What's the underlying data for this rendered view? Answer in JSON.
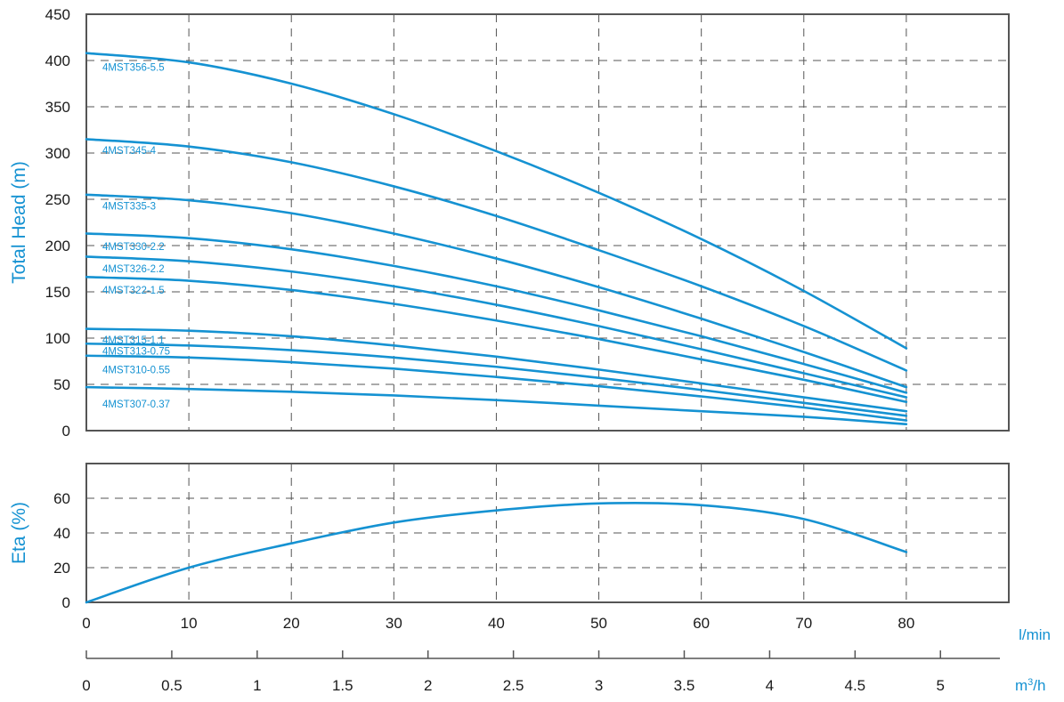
{
  "colors": {
    "curve": "#1592d2",
    "frame": "#555555",
    "text": "#1a1a1a"
  },
  "chart_data": [
    {
      "type": "line",
      "ylabel": "Total Head (m)",
      "ylim": [
        0,
        450
      ],
      "xlim": [
        0,
        90
      ],
      "y_ticks": [
        {
          "value": 0,
          "label": "0"
        },
        {
          "value": 50,
          "label": "50"
        },
        {
          "value": 100,
          "label": "100"
        },
        {
          "value": 150,
          "label": "150"
        },
        {
          "value": 200,
          "label": "200"
        },
        {
          "value": 250,
          "label": "250"
        },
        {
          "value": 300,
          "label": "300"
        },
        {
          "value": 350,
          "label": "350"
        },
        {
          "value": 400,
          "label": "400"
        },
        {
          "value": 450,
          "label": "450"
        }
      ],
      "grid": true,
      "x": [
        0,
        10,
        20,
        30,
        40,
        50,
        60,
        70,
        80
      ],
      "series": [
        {
          "name": "4MST356-5.5",
          "label_at": [
            0,
            393
          ],
          "values": [
            408,
            398,
            375,
            342,
            302,
            257,
            207,
            151,
            89
          ]
        },
        {
          "name": "4MST345-4",
          "label_at": [
            0,
            303
          ],
          "values": [
            315,
            307,
            290,
            264,
            232,
            195,
            156,
            113,
            65
          ]
        },
        {
          "name": "4MST335-3",
          "label_at": [
            0,
            243
          ],
          "values": [
            255,
            249,
            235,
            213,
            186,
            155,
            121,
            85,
            47
          ]
        },
        {
          "name": "4MST330-2.2",
          "label_at": [
            0,
            199
          ],
          "values": [
            213,
            208,
            196,
            178,
            156,
            130,
            102,
            72,
            41
          ]
        },
        {
          "name": "4MST326-2.2",
          "label_at": [
            0,
            175
          ],
          "values": [
            188,
            183,
            172,
            156,
            136,
            113,
            88,
            62,
            36
          ]
        },
        {
          "name": "4MST322-1.5",
          "label_at": [
            0,
            152
          ],
          "values": [
            166,
            162,
            152,
            137,
            119,
            99,
            77,
            55,
            31
          ]
        },
        {
          "name": "4MST315-1.1",
          "label_at": [
            0,
            98
          ],
          "values": [
            110,
            108,
            102,
            92,
            80,
            66,
            51,
            36,
            21
          ]
        },
        {
          "name": "4MST313-0.75",
          "label_at": [
            0,
            86
          ],
          "values": [
            94,
            92,
            87,
            79,
            69,
            57,
            44,
            30,
            16
          ]
        },
        {
          "name": "4MST310-0.55",
          "label_at": [
            0,
            66
          ],
          "values": [
            81,
            79,
            74,
            67,
            58,
            48,
            37,
            25,
            11
          ]
        },
        {
          "name": "4MST307-0.37",
          "label_at": [
            0,
            29
          ],
          "values": [
            47,
            45,
            42,
            38,
            33,
            27,
            21,
            15,
            7
          ]
        }
      ]
    },
    {
      "type": "line",
      "ylabel": "Eta (%)",
      "ylim": [
        0,
        80
      ],
      "xlim": [
        0,
        90
      ],
      "y_ticks": [
        {
          "value": 0,
          "label": "0"
        },
        {
          "value": 20,
          "label": "20"
        },
        {
          "value": 40,
          "label": "40"
        },
        {
          "value": 60,
          "label": "60"
        }
      ],
      "grid": true,
      "x": [
        0,
        10,
        20,
        30,
        40,
        50,
        60,
        70,
        80
      ],
      "series": [
        {
          "values": [
            0,
            20,
            34,
            46,
            53,
            57,
            56,
            48,
            29
          ]
        }
      ]
    }
  ],
  "x_axis_lmin": {
    "unit": "l/min",
    "ticks": [
      {
        "value": 0,
        "label": "0"
      },
      {
        "value": 10,
        "label": "10"
      },
      {
        "value": 20,
        "label": "20"
      },
      {
        "value": 30,
        "label": "30"
      },
      {
        "value": 40,
        "label": "40"
      },
      {
        "value": 50,
        "label": "50"
      },
      {
        "value": 60,
        "label": "60"
      },
      {
        "value": 70,
        "label": "70"
      },
      {
        "value": 80,
        "label": "80"
      }
    ]
  },
  "x_axis_m3h": {
    "unit_base": "m",
    "unit_sup": "3",
    "unit_tail": "/h",
    "ticks": [
      {
        "value": 0,
        "label": "0"
      },
      {
        "value": 0.5,
        "label": "0.5"
      },
      {
        "value": 1,
        "label": "1"
      },
      {
        "value": 1.5,
        "label": "1.5"
      },
      {
        "value": 2,
        "label": "2"
      },
      {
        "value": 2.5,
        "label": "2.5"
      },
      {
        "value": 3,
        "label": "3"
      },
      {
        "value": 3.5,
        "label": "3.5"
      },
      {
        "value": 4,
        "label": "4"
      },
      {
        "value": 4.5,
        "label": "4.5"
      },
      {
        "value": 5,
        "label": "5"
      }
    ]
  }
}
